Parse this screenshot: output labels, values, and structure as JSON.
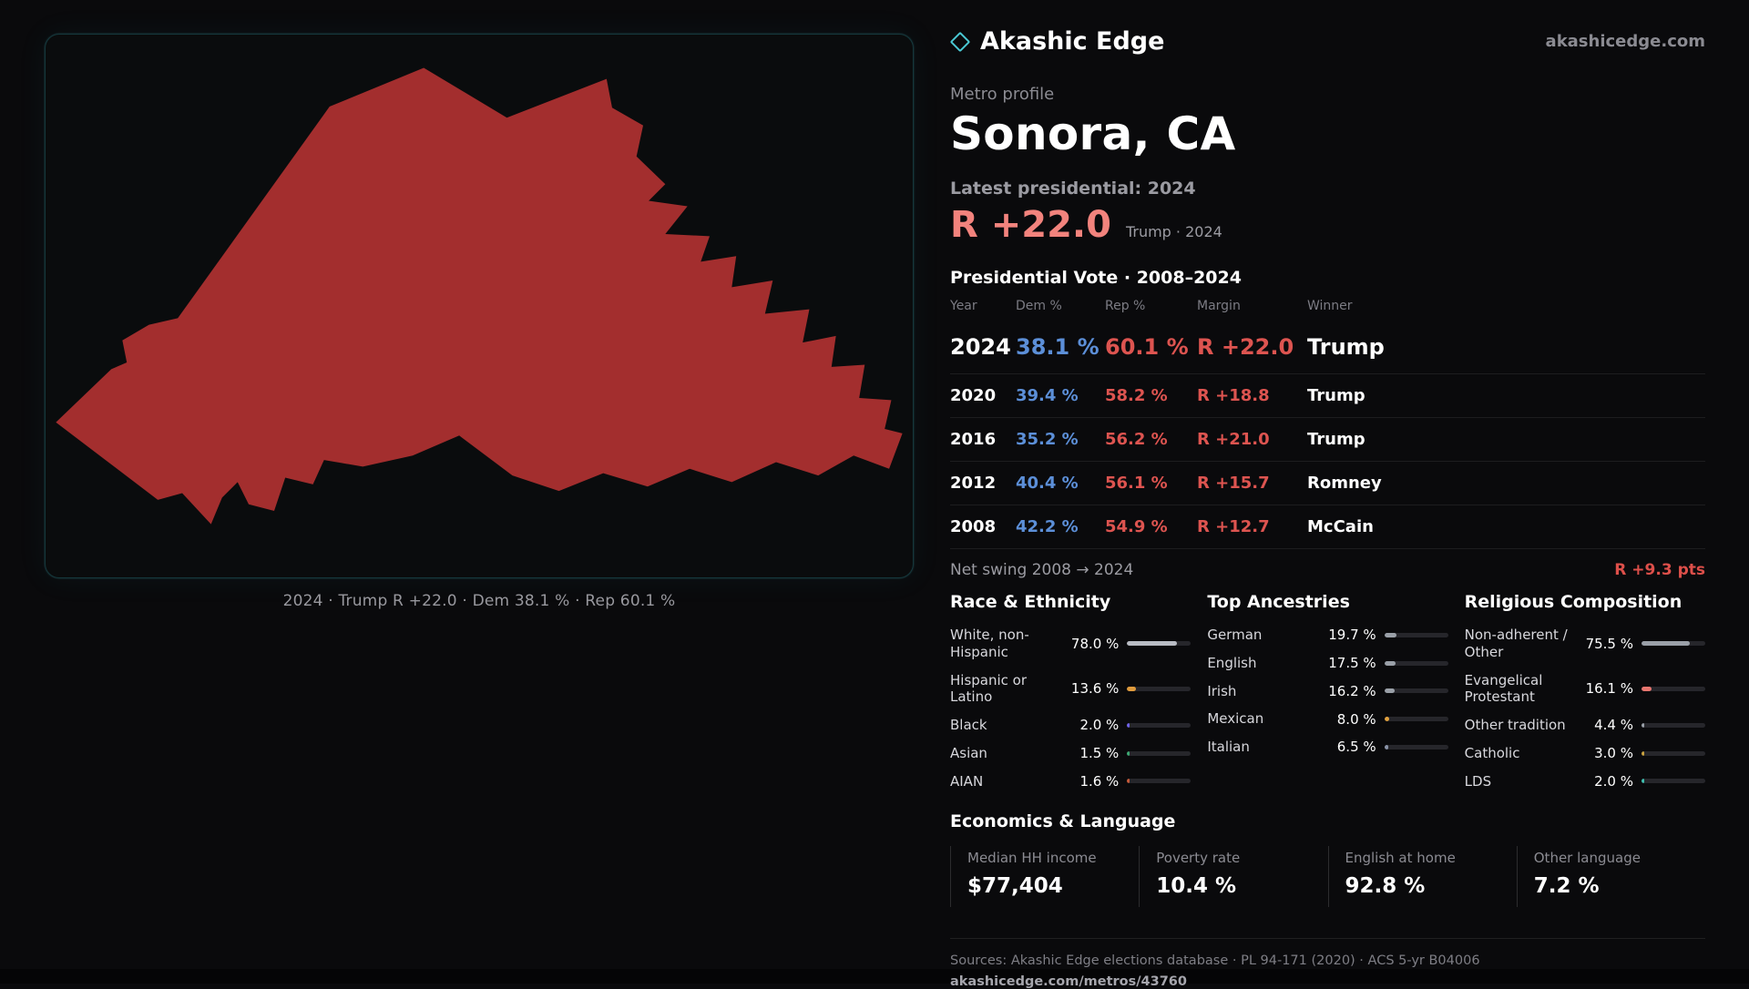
{
  "theme": {
    "background": "#0a0a0c",
    "panel_border": "#15383c",
    "accent_salmon": "#f2837d",
    "dem_blue": "#5c8fd8",
    "rep_red": "#dd5450",
    "muted_text": "#8b8b92"
  },
  "brand": {
    "name": "Akashic Edge",
    "site": "akashicedge.com"
  },
  "map": {
    "caption": "2024 · Trump R +22.0 · Dem 38.1 % · Rep 60.1 %",
    "shape_color": "#a32e2e"
  },
  "profile": {
    "eyebrow": "Metro profile",
    "title": "Sonora, CA",
    "latest_label": "Latest presidential: 2024",
    "margin_value": "R +22.0",
    "margin_context": "Trump · 2024"
  },
  "vote_table": {
    "title": "Presidential Vote · 2008–2024",
    "columns": {
      "year": "Year",
      "dem": "Dem %",
      "rep": "Rep %",
      "margin": "Margin",
      "winner": "Winner"
    },
    "rows": [
      {
        "year": "2024",
        "dem": "38.1 %",
        "rep": "60.1 %",
        "margin": "R +22.0",
        "winner": "Trump"
      },
      {
        "year": "2020",
        "dem": "39.4 %",
        "rep": "58.2 %",
        "margin": "R +18.8",
        "winner": "Trump"
      },
      {
        "year": "2016",
        "dem": "35.2 %",
        "rep": "56.2 %",
        "margin": "R +21.0",
        "winner": "Trump"
      },
      {
        "year": "2012",
        "dem": "40.4 %",
        "rep": "56.1 %",
        "margin": "R +15.7",
        "winner": "Romney"
      },
      {
        "year": "2008",
        "dem": "42.2 %",
        "rep": "54.9 %",
        "margin": "R +12.7",
        "winner": "McCain"
      }
    ]
  },
  "net_swing": {
    "label": "Net swing 2008 → 2024",
    "value": "R +9.3 pts"
  },
  "sections": {
    "race": {
      "title": "Race & Ethnicity",
      "items": [
        {
          "label": "White, non-Hispanic",
          "value": "78.0 %",
          "pct": 78.0,
          "color": "#b9bcc4"
        },
        {
          "label": "Hispanic or Latino",
          "value": "13.6 %",
          "pct": 13.6,
          "color": "#e09b3d"
        },
        {
          "label": "Black",
          "value": "2.0 %",
          "pct": 2.0,
          "color": "#6f63e8"
        },
        {
          "label": "Asian",
          "value": "1.5 %",
          "pct": 1.5,
          "color": "#3da873"
        },
        {
          "label": "AIAN",
          "value": "1.6 %",
          "pct": 1.6,
          "color": "#c65a3a"
        }
      ]
    },
    "ancestries": {
      "title": "Top Ancestries",
      "items": [
        {
          "label": "German",
          "value": "19.7 %",
          "pct": 19.7,
          "color": "#9aa0a8"
        },
        {
          "label": "English",
          "value": "17.5 %",
          "pct": 17.5,
          "color": "#9aa0a8"
        },
        {
          "label": "Irish",
          "value": "16.2 %",
          "pct": 16.2,
          "color": "#9aa0a8"
        },
        {
          "label": "Mexican",
          "value": "8.0 %",
          "pct": 8.0,
          "color": "#e2a23e"
        },
        {
          "label": "Italian",
          "value": "6.5 %",
          "pct": 6.5,
          "color": "#8a93a8"
        }
      ]
    },
    "religion": {
      "title": "Religious Composition",
      "items": [
        {
          "label": "Non-adherent / Other",
          "value": "75.5 %",
          "pct": 75.5,
          "color": "#9aa0a8"
        },
        {
          "label": "Evangelical Protestant",
          "value": "16.1 %",
          "pct": 16.1,
          "color": "#e8766f"
        },
        {
          "label": "Other tradition",
          "value": "4.4 %",
          "pct": 4.4,
          "color": "#9aa0a8"
        },
        {
          "label": "Catholic",
          "value": "3.0 %",
          "pct": 3.0,
          "color": "#c9a23f"
        },
        {
          "label": "LDS",
          "value": "2.0 %",
          "pct": 2.0,
          "color": "#3fbfb0"
        }
      ]
    }
  },
  "economics": {
    "title": "Economics & Language",
    "stats": [
      {
        "label": "Median HH income",
        "value": "$77,404"
      },
      {
        "label": "Poverty rate",
        "value": "10.4 %"
      },
      {
        "label": "English at home",
        "value": "92.8 %"
      },
      {
        "label": "Other language",
        "value": "7.2 %"
      }
    ]
  },
  "footer": {
    "sources": "Sources: Akashic Edge elections database · PL 94-171 (2020) · ACS 5-yr B04006",
    "permalink": "akashicedge.com/metros/43760"
  },
  "chart_data": [
    {
      "type": "table",
      "title": "Presidential Vote · 2008–2024",
      "columns": [
        "Year",
        "Dem %",
        "Rep %",
        "Margin",
        "Winner"
      ],
      "rows": [
        [
          2024,
          38.1,
          60.1,
          "R +22.0",
          "Trump"
        ],
        [
          2020,
          39.4,
          58.2,
          "R +18.8",
          "Trump"
        ],
        [
          2016,
          35.2,
          56.2,
          "R +21.0",
          "Trump"
        ],
        [
          2012,
          40.4,
          56.1,
          "R +15.7",
          "Romney"
        ],
        [
          2008,
          42.2,
          54.9,
          "R +12.7",
          "McCain"
        ]
      ],
      "net_swing_2008_to_2024": "R +9.3 pts"
    },
    {
      "type": "bar",
      "title": "Race & Ethnicity",
      "categories": [
        "White, non-Hispanic",
        "Hispanic or Latino",
        "Black",
        "Asian",
        "AIAN"
      ],
      "values": [
        78.0,
        13.6,
        2.0,
        1.5,
        1.6
      ],
      "unit": "%",
      "xlim": [
        0,
        100
      ]
    },
    {
      "type": "bar",
      "title": "Top Ancestries",
      "categories": [
        "German",
        "English",
        "Irish",
        "Mexican",
        "Italian"
      ],
      "values": [
        19.7,
        17.5,
        16.2,
        8.0,
        6.5
      ],
      "unit": "%",
      "xlim": [
        0,
        100
      ]
    },
    {
      "type": "bar",
      "title": "Religious Composition",
      "categories": [
        "Non-adherent / Other",
        "Evangelical Protestant",
        "Other tradition",
        "Catholic",
        "LDS"
      ],
      "values": [
        75.5,
        16.1,
        4.4,
        3.0,
        2.0
      ],
      "unit": "%",
      "xlim": [
        0,
        100
      ]
    },
    {
      "type": "table",
      "title": "Economics & Language",
      "columns": [
        "Median HH income",
        "Poverty rate",
        "English at home",
        "Other language"
      ],
      "rows": [
        [
          "$77,404",
          "10.4 %",
          "92.8 %",
          "7.2 %"
        ]
      ]
    }
  ]
}
